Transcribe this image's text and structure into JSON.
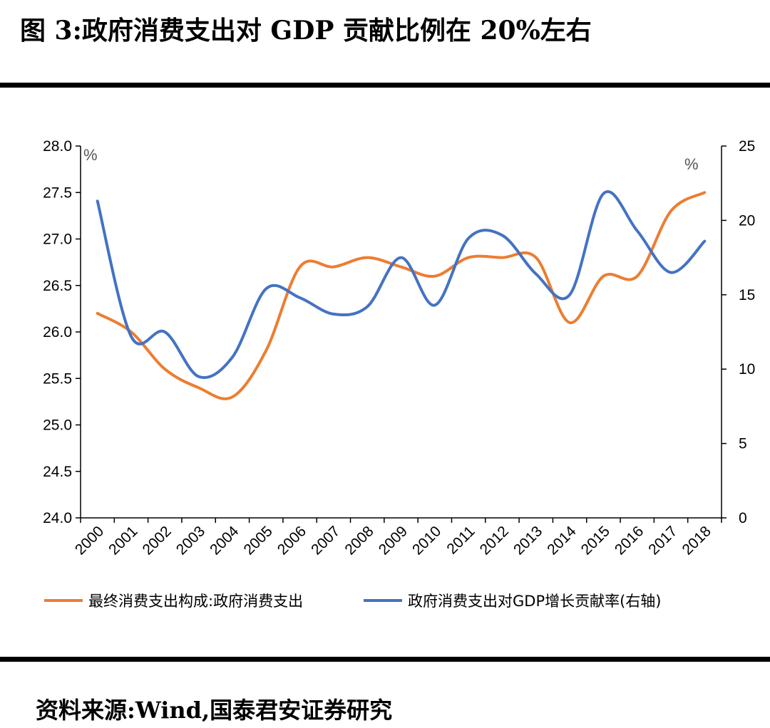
{
  "figure": {
    "title": "图 3:政府消费支出对 GDP 贡献比例在 20%左右",
    "source": "资料来源:Wind,国泰君安证券研究"
  },
  "chart_data": {
    "type": "line",
    "categories": [
      "2000",
      "2001",
      "2002",
      "2003",
      "2004",
      "2005",
      "2006",
      "2007",
      "2008",
      "2009",
      "2010",
      "2011",
      "2012",
      "2013",
      "2014",
      "2015",
      "2016",
      "2017",
      "2018"
    ],
    "series": [
      {
        "name": "最终消费支出构成:政府消费支出",
        "axis": "left",
        "color": "#ED7D31",
        "values": [
          26.2,
          26.0,
          25.6,
          25.4,
          25.3,
          25.8,
          26.7,
          26.7,
          26.8,
          26.7,
          26.6,
          26.8,
          26.8,
          26.8,
          26.1,
          26.6,
          26.6,
          27.3,
          27.5
        ]
      },
      {
        "name": "政府消费支出对GDP增长贡献率(右轴)",
        "axis": "right",
        "color": "#4472C4",
        "values": [
          21.3,
          12.2,
          12.5,
          9.5,
          10.8,
          15.4,
          14.8,
          13.7,
          14.2,
          17.5,
          14.3,
          18.8,
          19.0,
          16.4,
          15.0,
          21.8,
          19.3,
          16.5,
          18.6
        ]
      }
    ],
    "left_axis": {
      "unit": "%",
      "min": 24.0,
      "max": 28.0,
      "step": 0.5,
      "ticks": [
        "24.0",
        "24.5",
        "25.0",
        "25.5",
        "26.0",
        "26.5",
        "27.0",
        "27.5",
        "28.0"
      ]
    },
    "right_axis": {
      "unit": "%",
      "min": 0,
      "max": 25,
      "step": 5,
      "ticks": [
        "0",
        "5",
        "10",
        "15",
        "20",
        "25"
      ]
    },
    "grid": false,
    "legend_position": "bottom"
  }
}
